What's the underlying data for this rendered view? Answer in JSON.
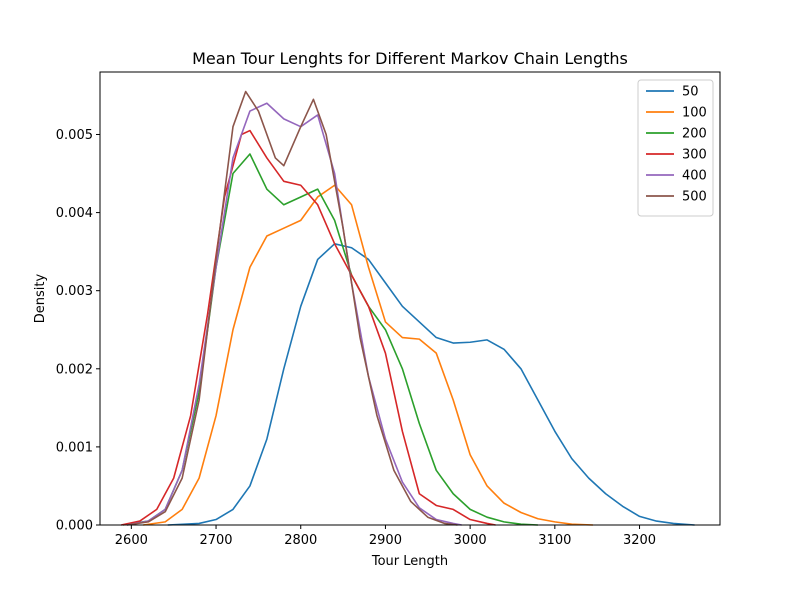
{
  "chart_data": {
    "type": "line",
    "title": "Mean Tour Lenghts for Different Markov Chain Lengths",
    "xlabel": "Tour Length",
    "ylabel": "Density",
    "xlim": [
      2563,
      2295
    ],
    "ylim": [
      0,
      0.0058
    ],
    "xticks": [
      2600,
      2700,
      2800,
      2900,
      3000,
      3100,
      3200
    ],
    "yticks": [
      0,
      0.001,
      0.002,
      0.003,
      0.004,
      0.005
    ],
    "ytick_labels": [
      "0.000",
      "0.001",
      "0.002",
      "0.003",
      "0.004",
      "0.005"
    ],
    "grid": false,
    "legend_position": "upper-right",
    "series": [
      {
        "name": "50",
        "color": "#1f77b4",
        "points": [
          [
            2643,
            0
          ],
          [
            2680,
            2e-05
          ],
          [
            2700,
            7e-05
          ],
          [
            2720,
            0.0002
          ],
          [
            2740,
            0.0005
          ],
          [
            2760,
            0.0011
          ],
          [
            2780,
            0.002
          ],
          [
            2800,
            0.0028
          ],
          [
            2820,
            0.0034
          ],
          [
            2840,
            0.0036
          ],
          [
            2860,
            0.00355
          ],
          [
            2880,
            0.0034
          ],
          [
            2900,
            0.0031
          ],
          [
            2920,
            0.0028
          ],
          [
            2940,
            0.0026
          ],
          [
            2960,
            0.0024
          ],
          [
            2980,
            0.00233
          ],
          [
            3000,
            0.00234
          ],
          [
            3020,
            0.00237
          ],
          [
            3040,
            0.00225
          ],
          [
            3060,
            0.002
          ],
          [
            3080,
            0.0016
          ],
          [
            3100,
            0.0012
          ],
          [
            3120,
            0.00085
          ],
          [
            3140,
            0.0006
          ],
          [
            3160,
            0.0004
          ],
          [
            3180,
            0.00024
          ],
          [
            3200,
            0.00011
          ],
          [
            3220,
            5e-05
          ],
          [
            3240,
            2e-05
          ],
          [
            3265,
            0
          ]
        ]
      },
      {
        "name": "100",
        "color": "#ff7f0e",
        "points": [
          [
            2614,
            0
          ],
          [
            2640,
            4e-05
          ],
          [
            2660,
            0.0002
          ],
          [
            2680,
            0.0006
          ],
          [
            2700,
            0.0014
          ],
          [
            2720,
            0.0025
          ],
          [
            2740,
            0.0033
          ],
          [
            2760,
            0.0037
          ],
          [
            2780,
            0.0038
          ],
          [
            2800,
            0.0039
          ],
          [
            2820,
            0.0042
          ],
          [
            2840,
            0.00435
          ],
          [
            2860,
            0.0041
          ],
          [
            2880,
            0.0033
          ],
          [
            2900,
            0.0026
          ],
          [
            2920,
            0.0024
          ],
          [
            2940,
            0.00238
          ],
          [
            2960,
            0.0022
          ],
          [
            2980,
            0.0016
          ],
          [
            3000,
            0.0009
          ],
          [
            3020,
            0.0005
          ],
          [
            3040,
            0.00028
          ],
          [
            3060,
            0.00016
          ],
          [
            3080,
            8e-05
          ],
          [
            3100,
            4e-05
          ],
          [
            3120,
            1e-05
          ],
          [
            3145,
            0
          ]
        ]
      },
      {
        "name": "200",
        "color": "#2ca02c",
        "points": [
          [
            2590,
            0
          ],
          [
            2620,
            5e-05
          ],
          [
            2640,
            0.0002
          ],
          [
            2660,
            0.0007
          ],
          [
            2680,
            0.0017
          ],
          [
            2700,
            0.0033
          ],
          [
            2720,
            0.0045
          ],
          [
            2740,
            0.00475
          ],
          [
            2760,
            0.0043
          ],
          [
            2780,
            0.0041
          ],
          [
            2800,
            0.0042
          ],
          [
            2820,
            0.0043
          ],
          [
            2840,
            0.0039
          ],
          [
            2860,
            0.0032
          ],
          [
            2880,
            0.0028
          ],
          [
            2900,
            0.0025
          ],
          [
            2920,
            0.002
          ],
          [
            2940,
            0.0013
          ],
          [
            2960,
            0.0007
          ],
          [
            2980,
            0.0004
          ],
          [
            3000,
            0.0002
          ],
          [
            3020,
            0.0001
          ],
          [
            3040,
            4e-05
          ],
          [
            3060,
            1e-05
          ],
          [
            3080,
            0
          ]
        ]
      },
      {
        "name": "300",
        "color": "#d62728",
        "points": [
          [
            2588,
            0
          ],
          [
            2610,
            5e-05
          ],
          [
            2630,
            0.0002
          ],
          [
            2650,
            0.0006
          ],
          [
            2670,
            0.0014
          ],
          [
            2690,
            0.0027
          ],
          [
            2710,
            0.0042
          ],
          [
            2730,
            0.005
          ],
          [
            2740,
            0.00505
          ],
          [
            2760,
            0.0047
          ],
          [
            2780,
            0.0044
          ],
          [
            2800,
            0.00435
          ],
          [
            2820,
            0.0041
          ],
          [
            2840,
            0.0036
          ],
          [
            2860,
            0.0032
          ],
          [
            2880,
            0.0028
          ],
          [
            2900,
            0.0022
          ],
          [
            2920,
            0.0012
          ],
          [
            2940,
            0.0004
          ],
          [
            2960,
            0.00025
          ],
          [
            2980,
            0.0002
          ],
          [
            3000,
            7e-05
          ],
          [
            3020,
            2e-05
          ],
          [
            3030,
            0
          ]
        ]
      },
      {
        "name": "400",
        "color": "#9467bd",
        "points": [
          [
            2595,
            0
          ],
          [
            2620,
            5e-05
          ],
          [
            2640,
            0.0002
          ],
          [
            2660,
            0.0007
          ],
          [
            2680,
            0.0018
          ],
          [
            2700,
            0.0033
          ],
          [
            2720,
            0.0047
          ],
          [
            2740,
            0.0053
          ],
          [
            2760,
            0.0054
          ],
          [
            2780,
            0.0052
          ],
          [
            2800,
            0.0051
          ],
          [
            2820,
            0.00525
          ],
          [
            2840,
            0.0045
          ],
          [
            2860,
            0.0031
          ],
          [
            2880,
            0.0019
          ],
          [
            2900,
            0.0011
          ],
          [
            2920,
            0.00055
          ],
          [
            2940,
            0.00022
          ],
          [
            2960,
            7e-05
          ],
          [
            2980,
            2e-05
          ],
          [
            2990,
            0
          ]
        ]
      },
      {
        "name": "500",
        "color": "#8c564b",
        "points": [
          [
            2595,
            0
          ],
          [
            2620,
            4e-05
          ],
          [
            2640,
            0.00017
          ],
          [
            2660,
            0.0006
          ],
          [
            2680,
            0.0016
          ],
          [
            2700,
            0.0034
          ],
          [
            2720,
            0.0051
          ],
          [
            2735,
            0.00555
          ],
          [
            2750,
            0.0053
          ],
          [
            2770,
            0.0047
          ],
          [
            2780,
            0.0046
          ],
          [
            2800,
            0.0051
          ],
          [
            2815,
            0.00545
          ],
          [
            2830,
            0.005
          ],
          [
            2850,
            0.0038
          ],
          [
            2870,
            0.0024
          ],
          [
            2890,
            0.0014
          ],
          [
            2910,
            0.0007
          ],
          [
            2930,
            0.0003
          ],
          [
            2950,
            0.0001
          ],
          [
            2970,
            2e-05
          ],
          [
            2985,
            0
          ]
        ]
      }
    ]
  }
}
